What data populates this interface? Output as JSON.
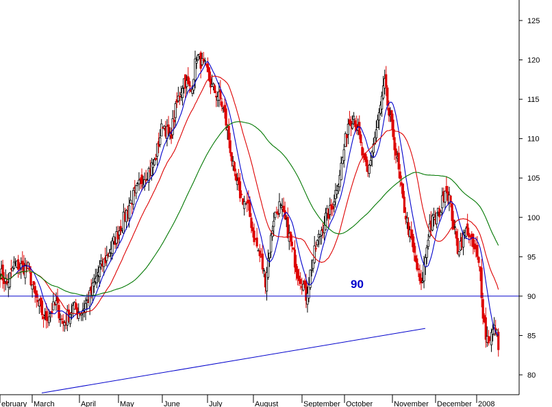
{
  "chart_data": {
    "type": "candlestick",
    "title": "",
    "xlabel": "",
    "ylabel": "",
    "ylim": [
      77.5,
      128.5
    ],
    "y_ticks": [
      80,
      85,
      90,
      95,
      100,
      105,
      110,
      115,
      120,
      125
    ],
    "y_tick_labels": [
      "80",
      "85",
      "90",
      "95",
      "100",
      "105",
      "110",
      "115",
      "120",
      "125"
    ],
    "y_axis_side": "right",
    "grid": false,
    "legend": "none",
    "x_months": [
      "February",
      "March",
      "April",
      "May",
      "June",
      "July",
      "August",
      "September",
      "October",
      "November",
      "December",
      "2008"
    ],
    "x_month_labels": [
      "ebruary",
      "March",
      "April",
      "May",
      "June",
      "July",
      "August",
      "September",
      "October",
      "November",
      "December",
      "2008"
    ],
    "horizontal_line": {
      "value": 90,
      "label": "90",
      "color": "#0000cc"
    },
    "trendline": {
      "from": {
        "month": "March",
        "value": 77.7
      },
      "to": {
        "month": "November",
        "value": 85.9
      },
      "color": "#0000cc"
    },
    "colors": {
      "up_candle": "#000000",
      "down_candle": "#dd0000",
      "ma_short": "#0000cc",
      "ma_medium": "#dd0000",
      "ma_long": "#007700"
    },
    "anchors": [
      [
        0,
        93
      ],
      [
        5,
        91.5
      ],
      [
        10,
        94
      ],
      [
        20,
        93.5
      ],
      [
        25,
        90
      ],
      [
        32,
        87
      ],
      [
        40,
        89
      ],
      [
        45,
        86.5
      ],
      [
        52,
        88.5
      ],
      [
        58,
        88
      ],
      [
        64,
        90
      ],
      [
        70,
        93
      ],
      [
        76,
        95
      ],
      [
        84,
        98
      ],
      [
        93,
        102
      ],
      [
        102,
        105
      ],
      [
        110,
        107
      ],
      [
        116,
        112
      ],
      [
        121,
        110
      ],
      [
        126,
        114.5
      ],
      [
        131,
        117.5
      ],
      [
        136,
        116
      ],
      [
        140,
        120.5
      ],
      [
        146,
        119
      ],
      [
        151,
        116.5
      ],
      [
        157,
        115
      ],
      [
        160,
        113
      ],
      [
        163,
        110
      ],
      [
        167,
        105
      ],
      [
        171,
        103
      ],
      [
        177,
        101
      ],
      [
        181,
        97.5
      ],
      [
        186,
        94.5
      ],
      [
        189,
        92
      ],
      [
        192,
        96
      ],
      [
        195,
        100
      ],
      [
        199,
        101.5
      ],
      [
        204,
        99
      ],
      [
        208,
        96
      ],
      [
        212,
        93
      ],
      [
        215,
        92
      ],
      [
        218,
        90
      ],
      [
        221,
        93
      ],
      [
        224,
        95.5
      ],
      [
        228,
        98
      ],
      [
        232,
        100
      ],
      [
        236,
        101
      ],
      [
        240,
        104
      ],
      [
        244,
        107.5
      ],
      [
        248,
        112
      ],
      [
        252,
        113
      ],
      [
        256,
        110
      ],
      [
        259,
        107
      ],
      [
        262,
        105.5
      ],
      [
        265,
        108.5
      ],
      [
        268,
        111
      ],
      [
        271,
        114
      ],
      [
        274,
        117
      ],
      [
        277,
        113
      ],
      [
        280,
        110.5
      ],
      [
        283,
        107
      ],
      [
        287,
        102
      ],
      [
        291,
        98.5
      ],
      [
        294,
        96
      ],
      [
        297,
        93.5
      ],
      [
        300,
        91
      ],
      [
        303,
        95
      ],
      [
        306,
        99
      ],
      [
        310,
        100
      ],
      [
        314,
        101
      ],
      [
        317,
        104
      ],
      [
        320,
        102.5
      ],
      [
        323,
        99
      ],
      [
        326,
        96
      ],
      [
        330,
        97.5
      ],
      [
        333,
        98.5
      ],
      [
        336,
        96.5
      ],
      [
        339,
        95.5
      ],
      [
        342,
        93
      ],
      [
        344,
        88
      ],
      [
        346,
        85
      ],
      [
        348,
        84.5
      ],
      [
        351,
        85.5
      ],
      [
        353,
        86
      ],
      [
        355,
        84
      ]
    ]
  }
}
